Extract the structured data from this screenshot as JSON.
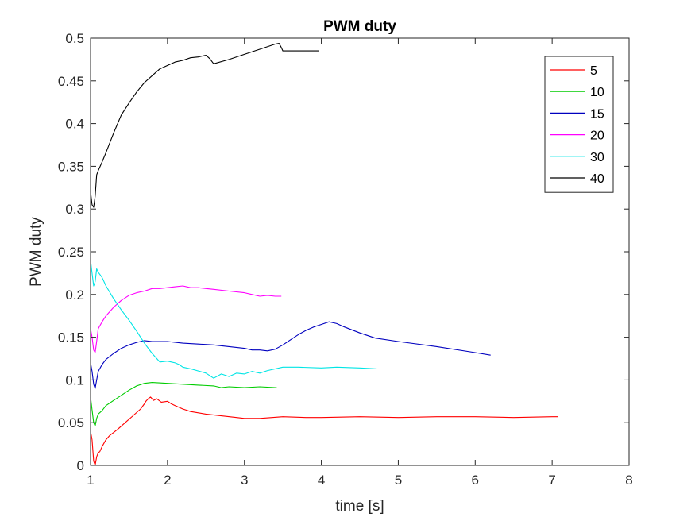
{
  "chart_data": {
    "type": "line",
    "title": "PWM duty",
    "xlabel": "time [s]",
    "ylabel": "PWM duty",
    "xlim": [
      1,
      8
    ],
    "ylim": [
      0,
      0.5
    ],
    "xticks": [
      "1",
      "2",
      "3",
      "4",
      "5",
      "6",
      "7",
      "8"
    ],
    "yticks": [
      "0",
      "0.05",
      "0.1",
      "0.15",
      "0.2",
      "0.25",
      "0.3",
      "0.35",
      "0.4",
      "0.45",
      "0.5"
    ],
    "grid": false,
    "legend_position": "top-right",
    "series": [
      {
        "name": "5",
        "color": "#ff0000",
        "points": [
          [
            1.0,
            0.04
          ],
          [
            1.02,
            0.03
          ],
          [
            1.04,
            0.005
          ],
          [
            1.06,
            0.0
          ],
          [
            1.08,
            0.01
          ],
          [
            1.1,
            0.015
          ],
          [
            1.12,
            0.016
          ],
          [
            1.15,
            0.022
          ],
          [
            1.2,
            0.03
          ],
          [
            1.25,
            0.035
          ],
          [
            1.35,
            0.042
          ],
          [
            1.45,
            0.05
          ],
          [
            1.55,
            0.058
          ],
          [
            1.65,
            0.066
          ],
          [
            1.7,
            0.072
          ],
          [
            1.72,
            0.075
          ],
          [
            1.75,
            0.078
          ],
          [
            1.78,
            0.08
          ],
          [
            1.82,
            0.076
          ],
          [
            1.86,
            0.078
          ],
          [
            1.92,
            0.074
          ],
          [
            2.0,
            0.075
          ],
          [
            2.05,
            0.072
          ],
          [
            2.1,
            0.07
          ],
          [
            2.2,
            0.066
          ],
          [
            2.3,
            0.063
          ],
          [
            2.5,
            0.06
          ],
          [
            2.7,
            0.058
          ],
          [
            2.9,
            0.056
          ],
          [
            3.0,
            0.055
          ],
          [
            3.2,
            0.055
          ],
          [
            3.5,
            0.057
          ],
          [
            3.8,
            0.056
          ],
          [
            4.0,
            0.056
          ],
          [
            4.5,
            0.057
          ],
          [
            5.0,
            0.056
          ],
          [
            5.5,
            0.057
          ],
          [
            6.0,
            0.057
          ],
          [
            6.5,
            0.056
          ],
          [
            7.0,
            0.057
          ],
          [
            7.08,
            0.057
          ]
        ]
      },
      {
        "name": "10",
        "color": "#00cc00",
        "points": [
          [
            1.0,
            0.08
          ],
          [
            1.02,
            0.065
          ],
          [
            1.04,
            0.05
          ],
          [
            1.06,
            0.046
          ],
          [
            1.08,
            0.055
          ],
          [
            1.1,
            0.06
          ],
          [
            1.15,
            0.064
          ],
          [
            1.2,
            0.07
          ],
          [
            1.3,
            0.076
          ],
          [
            1.4,
            0.082
          ],
          [
            1.5,
            0.088
          ],
          [
            1.6,
            0.093
          ],
          [
            1.7,
            0.096
          ],
          [
            1.8,
            0.097
          ],
          [
            2.0,
            0.096
          ],
          [
            2.2,
            0.095
          ],
          [
            2.4,
            0.094
          ],
          [
            2.6,
            0.093
          ],
          [
            2.7,
            0.091
          ],
          [
            2.8,
            0.092
          ],
          [
            3.0,
            0.091
          ],
          [
            3.2,
            0.092
          ],
          [
            3.4,
            0.091
          ],
          [
            3.42,
            0.091
          ]
        ]
      },
      {
        "name": "15",
        "color": "#0000bf",
        "points": [
          [
            1.0,
            0.12
          ],
          [
            1.02,
            0.11
          ],
          [
            1.04,
            0.095
          ],
          [
            1.06,
            0.09
          ],
          [
            1.08,
            0.1
          ],
          [
            1.1,
            0.11
          ],
          [
            1.15,
            0.118
          ],
          [
            1.2,
            0.124
          ],
          [
            1.3,
            0.131
          ],
          [
            1.4,
            0.137
          ],
          [
            1.5,
            0.141
          ],
          [
            1.6,
            0.144
          ],
          [
            1.7,
            0.146
          ],
          [
            1.8,
            0.145
          ],
          [
            2.0,
            0.145
          ],
          [
            2.2,
            0.143
          ],
          [
            2.4,
            0.142
          ],
          [
            2.6,
            0.141
          ],
          [
            2.8,
            0.139
          ],
          [
            3.0,
            0.137
          ],
          [
            3.1,
            0.135
          ],
          [
            3.2,
            0.135
          ],
          [
            3.3,
            0.134
          ],
          [
            3.4,
            0.136
          ],
          [
            3.5,
            0.141
          ],
          [
            3.6,
            0.147
          ],
          [
            3.7,
            0.153
          ],
          [
            3.8,
            0.158
          ],
          [
            3.9,
            0.162
          ],
          [
            4.0,
            0.165
          ],
          [
            4.1,
            0.168
          ],
          [
            4.2,
            0.166
          ],
          [
            4.3,
            0.162
          ],
          [
            4.5,
            0.155
          ],
          [
            4.7,
            0.149
          ],
          [
            5.0,
            0.145
          ],
          [
            5.5,
            0.139
          ],
          [
            6.0,
            0.132
          ],
          [
            6.2,
            0.129
          ]
        ]
      },
      {
        "name": "20",
        "color": "#ff00ff",
        "points": [
          [
            1.0,
            0.16
          ],
          [
            1.02,
            0.15
          ],
          [
            1.04,
            0.135
          ],
          [
            1.06,
            0.132
          ],
          [
            1.08,
            0.145
          ],
          [
            1.1,
            0.16
          ],
          [
            1.15,
            0.168
          ],
          [
            1.2,
            0.175
          ],
          [
            1.3,
            0.185
          ],
          [
            1.4,
            0.193
          ],
          [
            1.5,
            0.199
          ],
          [
            1.6,
            0.202
          ],
          [
            1.7,
            0.204
          ],
          [
            1.8,
            0.207
          ],
          [
            1.9,
            0.207
          ],
          [
            2.0,
            0.208
          ],
          [
            2.1,
            0.209
          ],
          [
            2.2,
            0.21
          ],
          [
            2.3,
            0.208
          ],
          [
            2.4,
            0.208
          ],
          [
            2.5,
            0.207
          ],
          [
            2.6,
            0.206
          ],
          [
            2.8,
            0.204
          ],
          [
            3.0,
            0.202
          ],
          [
            3.1,
            0.2
          ],
          [
            3.2,
            0.198
          ],
          [
            3.3,
            0.199
          ],
          [
            3.4,
            0.198
          ],
          [
            3.48,
            0.198
          ]
        ]
      },
      {
        "name": "30",
        "color": "#00e5e5",
        "points": [
          [
            1.0,
            0.24
          ],
          [
            1.02,
            0.225
          ],
          [
            1.04,
            0.21
          ],
          [
            1.06,
            0.215
          ],
          [
            1.08,
            0.23
          ],
          [
            1.1,
            0.226
          ],
          [
            1.15,
            0.22
          ],
          [
            1.2,
            0.21
          ],
          [
            1.3,
            0.195
          ],
          [
            1.4,
            0.182
          ],
          [
            1.5,
            0.17
          ],
          [
            1.6,
            0.157
          ],
          [
            1.7,
            0.143
          ],
          [
            1.8,
            0.131
          ],
          [
            1.9,
            0.121
          ],
          [
            2.0,
            0.122
          ],
          [
            2.05,
            0.121
          ],
          [
            2.1,
            0.12
          ],
          [
            2.15,
            0.118
          ],
          [
            2.2,
            0.115
          ],
          [
            2.3,
            0.113
          ],
          [
            2.5,
            0.108
          ],
          [
            2.6,
            0.102
          ],
          [
            2.7,
            0.107
          ],
          [
            2.8,
            0.104
          ],
          [
            2.9,
            0.108
          ],
          [
            3.0,
            0.107
          ],
          [
            3.1,
            0.11
          ],
          [
            3.2,
            0.108
          ],
          [
            3.3,
            0.111
          ],
          [
            3.5,
            0.115
          ],
          [
            3.7,
            0.115
          ],
          [
            4.0,
            0.114
          ],
          [
            4.2,
            0.115
          ],
          [
            4.5,
            0.114
          ],
          [
            4.72,
            0.113
          ]
        ]
      },
      {
        "name": "40",
        "color": "#000000",
        "points": [
          [
            1.0,
            0.32
          ],
          [
            1.02,
            0.305
          ],
          [
            1.04,
            0.302
          ],
          [
            1.06,
            0.315
          ],
          [
            1.08,
            0.34
          ],
          [
            1.1,
            0.345
          ],
          [
            1.15,
            0.355
          ],
          [
            1.2,
            0.366
          ],
          [
            1.3,
            0.389
          ],
          [
            1.4,
            0.41
          ],
          [
            1.5,
            0.424
          ],
          [
            1.6,
            0.437
          ],
          [
            1.7,
            0.448
          ],
          [
            1.8,
            0.456
          ],
          [
            1.9,
            0.464
          ],
          [
            2.0,
            0.468
          ],
          [
            2.1,
            0.472
          ],
          [
            2.2,
            0.474
          ],
          [
            2.3,
            0.477
          ],
          [
            2.4,
            0.478
          ],
          [
            2.5,
            0.48
          ],
          [
            2.55,
            0.476
          ],
          [
            2.6,
            0.47
          ],
          [
            2.8,
            0.475
          ],
          [
            3.0,
            0.481
          ],
          [
            3.2,
            0.487
          ],
          [
            3.4,
            0.493
          ],
          [
            3.45,
            0.494
          ],
          [
            3.48,
            0.489
          ],
          [
            3.5,
            0.485
          ],
          [
            3.7,
            0.485
          ],
          [
            3.97,
            0.485
          ]
        ]
      }
    ]
  }
}
